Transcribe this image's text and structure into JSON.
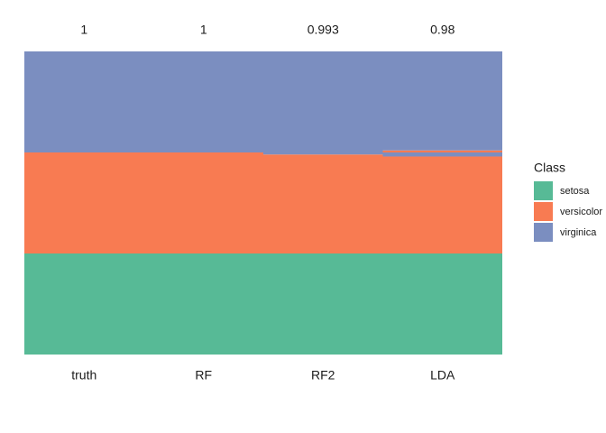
{
  "chart_data": {
    "type": "stacked-columns",
    "ylim": [
      0,
      150
    ],
    "legend": {
      "title": "Class",
      "position": "right",
      "items": [
        {
          "name": "setosa",
          "color": "#57ba96"
        },
        {
          "name": "versicolor",
          "color": "#f87b52"
        },
        {
          "name": "virginica",
          "color": "#7b8ec0"
        }
      ]
    },
    "columns": [
      {
        "name": "truth",
        "accuracy": 1,
        "segments": [
          {
            "class": "setosa",
            "count": 50
          },
          {
            "class": "versicolor",
            "count": 50
          },
          {
            "class": "virginica",
            "count": 50
          }
        ]
      },
      {
        "name": "RF",
        "accuracy": 1,
        "segments": [
          {
            "class": "setosa",
            "count": 50
          },
          {
            "class": "versicolor",
            "count": 50
          },
          {
            "class": "virginica",
            "count": 50
          }
        ]
      },
      {
        "name": "RF2",
        "accuracy": 0.993,
        "segments": [
          {
            "class": "setosa",
            "count": 50
          },
          {
            "class": "versicolor",
            "count": 49
          },
          {
            "class": "virginica",
            "count": 1
          },
          {
            "class": "virginica",
            "count": 50
          }
        ]
      },
      {
        "name": "LDA",
        "accuracy": 0.98,
        "segments": [
          {
            "class": "setosa",
            "count": 50
          },
          {
            "class": "versicolor",
            "count": 48
          },
          {
            "class": "virginica",
            "count": 2
          },
          {
            "class": "versicolor",
            "count": 1
          },
          {
            "class": "virginica",
            "count": 49
          }
        ]
      }
    ]
  }
}
